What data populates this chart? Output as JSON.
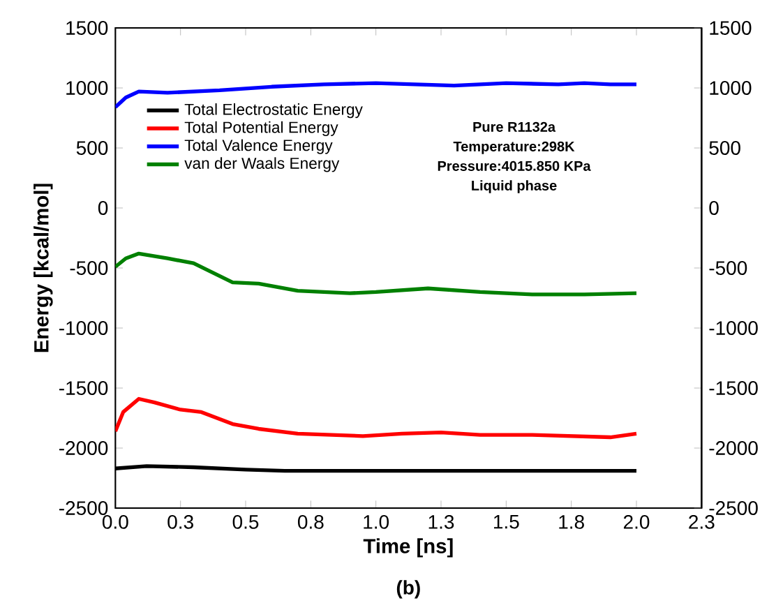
{
  "chart_data": {
    "type": "line",
    "xlabel": "Time [ns]",
    "ylabel": "Energy [kcal/mol]",
    "xlim": [
      0,
      2.25
    ],
    "ylim": [
      -2500,
      1500
    ],
    "y2lim": [
      -2500,
      1500
    ],
    "xticks": [
      {
        "value": 0,
        "label": "0.0"
      },
      {
        "value": 0.25,
        "label": "0.3"
      },
      0.5,
      {
        "value": 0.75,
        "label": "0.8"
      },
      {
        "value": 1,
        "label": "1.0"
      },
      {
        "value": 1.25,
        "label": "1.3"
      },
      1.5,
      {
        "value": 1.75,
        "label": "1.8"
      },
      {
        "value": 2,
        "label": "2.0"
      },
      {
        "value": 2.25,
        "label": "2.3"
      }
    ],
    "yticks": [
      -2500,
      -2000,
      -1500,
      -1000,
      -500,
      0,
      500,
      1000,
      1500
    ],
    "y2ticks": [
      -2500,
      -2000,
      -1500,
      -1000,
      -500,
      0,
      500,
      1000,
      1500
    ],
    "legend": "top left",
    "line_style": "solid",
    "series": [
      {
        "name": "Total Electrostatic Energy",
        "color": "#000000",
        "x": [
          0,
          0.12,
          0.3,
          0.5,
          0.65,
          1.0,
          1.5,
          2.0
        ],
        "values": [
          -2170,
          -2150,
          -2160,
          -2180,
          -2190,
          -2190,
          -2190,
          -2190
        ]
      },
      {
        "name": "Total Potential Energy",
        "color": "#ff0000",
        "x": [
          0,
          0.03,
          0.09,
          0.15,
          0.25,
          0.33,
          0.45,
          0.55,
          0.7,
          0.95,
          1.1,
          1.25,
          1.4,
          1.6,
          1.9,
          2.0
        ],
        "values": [
          -1860,
          -1700,
          -1590,
          -1620,
          -1680,
          -1700,
          -1800,
          -1840,
          -1880,
          -1900,
          -1880,
          -1870,
          -1890,
          -1890,
          -1910,
          -1880
        ]
      },
      {
        "name": "Total Valence Energy",
        "color": "#0000ff",
        "x": [
          0,
          0.04,
          0.09,
          0.2,
          0.4,
          0.6,
          0.8,
          1.0,
          1.15,
          1.3,
          1.5,
          1.7,
          1.8,
          1.9,
          2.0
        ],
        "values": [
          840,
          920,
          970,
          960,
          980,
          1010,
          1030,
          1040,
          1030,
          1020,
          1040,
          1030,
          1040,
          1030,
          1030
        ]
      },
      {
        "name": "van der Waals Energy",
        "color": "#008000",
        "x": [
          0,
          0.04,
          0.09,
          0.2,
          0.3,
          0.45,
          0.55,
          0.7,
          0.9,
          1.0,
          1.2,
          1.4,
          1.6,
          1.8,
          2.0
        ],
        "values": [
          -490,
          -420,
          -380,
          -420,
          -460,
          -620,
          -630,
          -690,
          -710,
          -700,
          -670,
          -700,
          -720,
          -720,
          -710
        ]
      }
    ],
    "annotations": [
      "Pure R1132a",
      "Temperature:298K",
      "Pressure:4015.850 KPa",
      "Liquid phase",
      "(b)"
    ]
  }
}
